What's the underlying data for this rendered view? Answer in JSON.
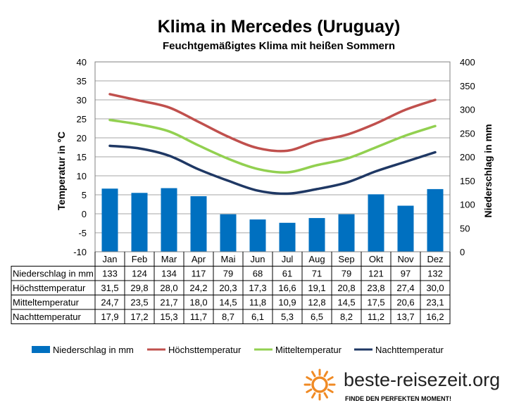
{
  "chart_data": {
    "type": "bar",
    "title": "Klima in Mercedes (Uruguay)",
    "subtitle": "Feuchtgemäßigtes Klima mit heißen Sommern",
    "ylabel": "Temperatur in °C",
    "y2label": "Niederschlag in mm",
    "ylim": [
      -10,
      40
    ],
    "yticks": [
      "40",
      "35",
      "30",
      "25",
      "20",
      "15",
      "10",
      "5",
      "0",
      "-5",
      "-10"
    ],
    "y2lim": [
      0,
      400
    ],
    "y2ticks": [
      "400",
      "350",
      "300",
      "250",
      "200",
      "150",
      "100",
      "50",
      "0"
    ],
    "grid": true,
    "legend_position": "bottom",
    "categories": [
      "Jan",
      "Feb",
      "Mar",
      "Apr",
      "Mai",
      "Jun",
      "Jul",
      "Aug",
      "Sep",
      "Okt",
      "Nov",
      "Dez"
    ],
    "series": [
      {
        "name": "Niederschlag in mm",
        "kind": "bar",
        "axis": "right",
        "color": "#0070C0",
        "values": [
          133,
          124,
          134,
          117,
          79,
          68,
          61,
          71,
          79,
          121,
          97,
          132
        ],
        "labels": [
          "133",
          "124",
          "134",
          "117",
          "79",
          "68",
          "61",
          "71",
          "79",
          "121",
          "97",
          "132"
        ]
      },
      {
        "name": "Höchsttemperatur",
        "kind": "line",
        "axis": "left",
        "color": "#C0504D",
        "values": [
          31.5,
          29.8,
          28.0,
          24.2,
          20.3,
          17.3,
          16.6,
          19.1,
          20.8,
          23.8,
          27.4,
          30.0
        ],
        "labels": [
          "31,5",
          "29,8",
          "28,0",
          "24,2",
          "20,3",
          "17,3",
          "16,6",
          "19,1",
          "20,8",
          "23,8",
          "27,4",
          "30,0"
        ]
      },
      {
        "name": "Mitteltemperatur",
        "kind": "line",
        "axis": "left",
        "color": "#92D050",
        "values": [
          24.7,
          23.5,
          21.7,
          18.0,
          14.5,
          11.8,
          10.9,
          12.8,
          14.5,
          17.5,
          20.6,
          23.1
        ],
        "labels": [
          "24,7",
          "23,5",
          "21,7",
          "18,0",
          "14,5",
          "11,8",
          "10,9",
          "12,8",
          "14,5",
          "17,5",
          "20,6",
          "23,1"
        ]
      },
      {
        "name": "Nachttemperatur",
        "kind": "line",
        "axis": "left",
        "color": "#1F3864",
        "values": [
          17.9,
          17.2,
          15.3,
          11.7,
          8.7,
          6.1,
          5.3,
          6.5,
          8.2,
          11.2,
          13.7,
          16.2
        ],
        "labels": [
          "17,9",
          "17,2",
          "15,3",
          "11,7",
          "8,7",
          "6,1",
          "5,3",
          "6,5",
          "8,2",
          "11,2",
          "13,7",
          "16,2"
        ]
      }
    ]
  },
  "brand": {
    "name": "beste-reisezeit.org",
    "slogan": "FINDE DEN PERFEKTEN MOMENT!",
    "sun_color": "#F08A24"
  }
}
